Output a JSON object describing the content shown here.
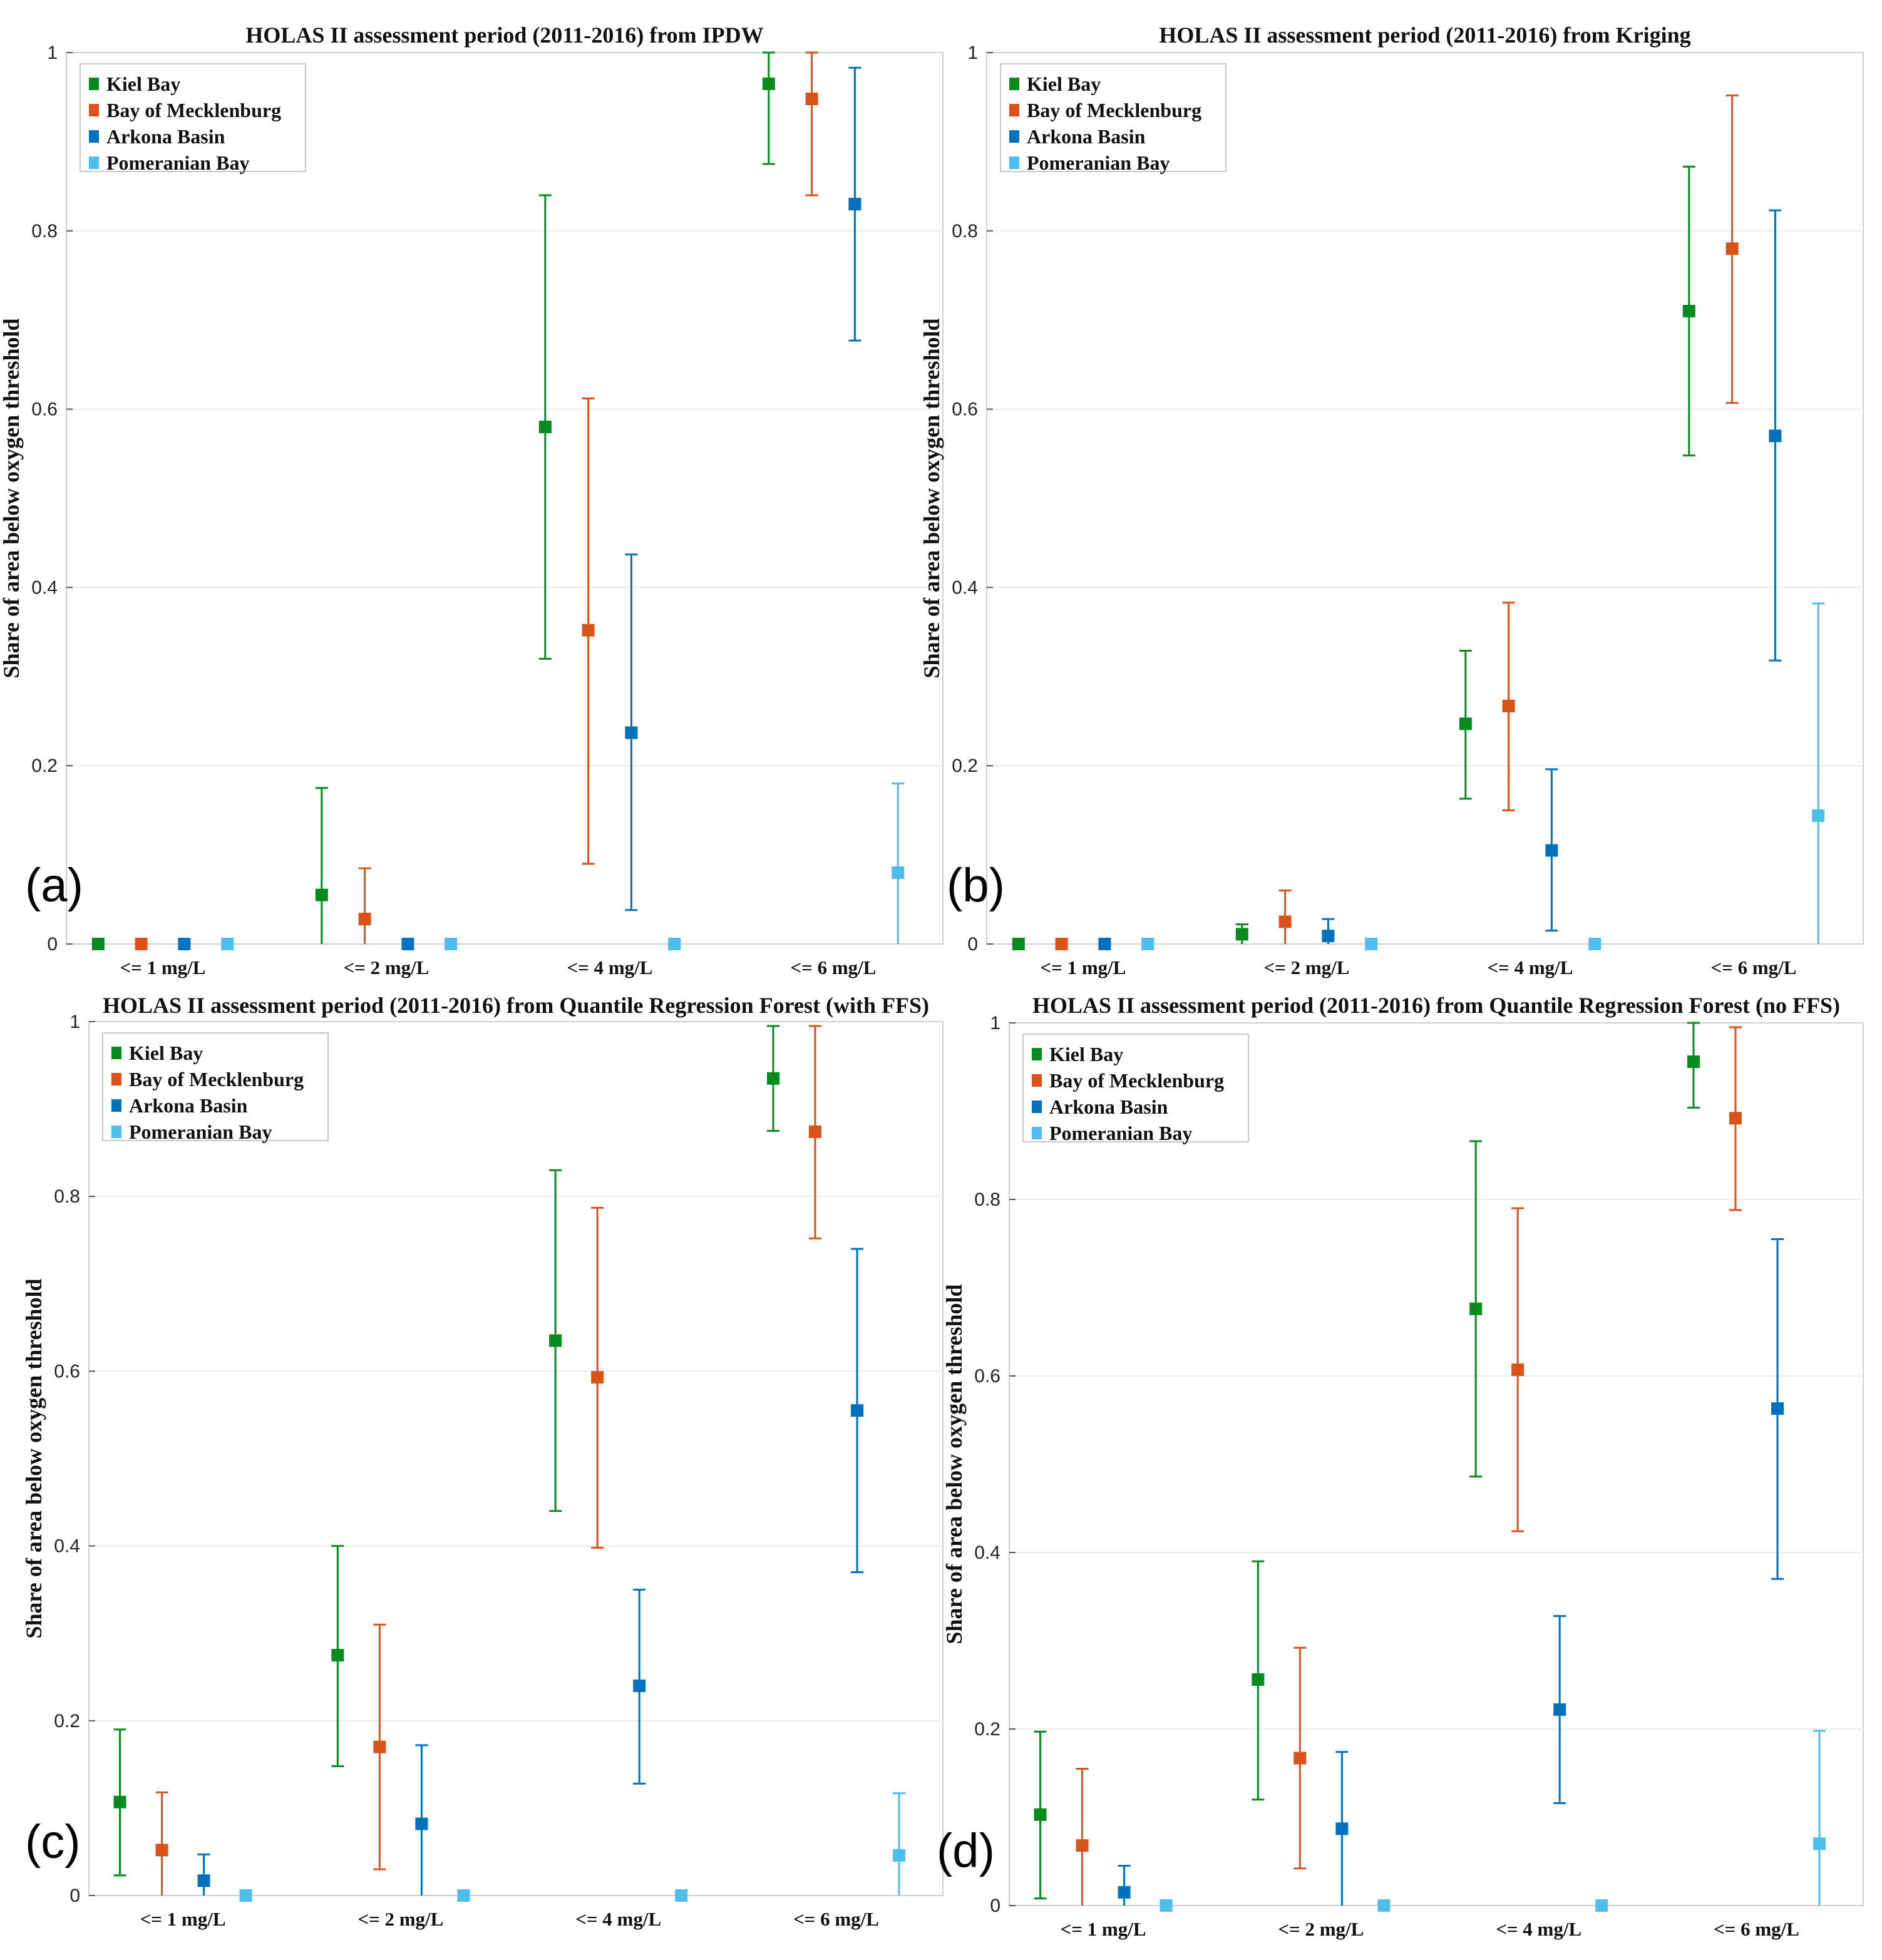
{
  "figure": {
    "series_names": [
      "Kiel Bay",
      "Bay of Mecklenburg",
      "Arkona Basin",
      "Pomeranian Bay"
    ],
    "series_colors": [
      "#078a1e",
      "#d95319",
      "#0072bd",
      "#4dbeee"
    ],
    "ylabel": "Share of area below oxygen threshold",
    "categories": [
      "<= 1 mg/L",
      "<= 2 mg/L",
      "<= 4 mg/L",
      "<= 6 mg/L"
    ],
    "yticks": [
      "0",
      "0.2",
      "0.4",
      "0.6",
      "0.8",
      "1"
    ]
  },
  "chart_data": [
    {
      "type": "errorbar",
      "panel_label": "(a)",
      "title": "HOLAS II assessment period (2011-2016) from IPDW",
      "xlabel": "",
      "ylabel": "Share of area below oxygen threshold",
      "ylim": [
        0,
        1
      ],
      "categories": [
        "<= 1 mg/L",
        "<= 2 mg/L",
        "<= 4 mg/L",
        "<= 6 mg/L"
      ],
      "legend_position": "top-left",
      "series": [
        {
          "name": "Kiel Bay",
          "values": [
            0,
            0.055,
            0.58,
            0.965
          ],
          "lower": [
            0,
            0,
            0.32,
            0.875
          ],
          "upper": [
            0,
            0.175,
            0.84,
            1.0
          ]
        },
        {
          "name": "Bay of Mecklenburg",
          "values": [
            0,
            0.028,
            0.352,
            0.948
          ],
          "lower": [
            0,
            0,
            0.09,
            0.84
          ],
          "upper": [
            0,
            0.085,
            0.612,
            1.0
          ]
        },
        {
          "name": "Arkona Basin",
          "values": [
            0,
            0,
            0.237,
            0.83
          ],
          "lower": [
            0,
            0,
            0.038,
            0.677
          ],
          "upper": [
            0,
            0,
            0.437,
            0.983
          ]
        },
        {
          "name": "Pomeranian Bay",
          "values": [
            0,
            0,
            0,
            0.08
          ],
          "lower": [
            0,
            0,
            0,
            0
          ],
          "upper": [
            0,
            0,
            0,
            0.18
          ]
        }
      ]
    },
    {
      "type": "errorbar",
      "panel_label": "(b)",
      "title": "HOLAS II assessment period (2011-2016) from Kriging",
      "xlabel": "",
      "ylabel": "Share of area below oxygen threshold",
      "ylim": [
        0,
        1
      ],
      "categories": [
        "<= 1 mg/L",
        "<= 2 mg/L",
        "<= 4 mg/L",
        "<= 6 mg/L"
      ],
      "legend_position": "top-left",
      "series": [
        {
          "name": "Kiel Bay",
          "values": [
            0,
            0.011,
            0.247,
            0.71
          ],
          "lower": [
            0,
            0,
            0.163,
            0.548
          ],
          "upper": [
            0,
            0.022,
            0.329,
            0.872
          ]
        },
        {
          "name": "Bay of Mecklenburg",
          "values": [
            0,
            0.025,
            0.267,
            0.78
          ],
          "lower": [
            0,
            0,
            0.15,
            0.607
          ],
          "upper": [
            0,
            0.06,
            0.383,
            0.952
          ]
        },
        {
          "name": "Arkona Basin",
          "values": [
            0,
            0.009,
            0.105,
            0.57
          ],
          "lower": [
            0,
            0,
            0.015,
            0.318
          ],
          "upper": [
            0,
            0.028,
            0.196,
            0.823
          ]
        },
        {
          "name": "Pomeranian Bay",
          "values": [
            0,
            0,
            0,
            0.144
          ],
          "lower": [
            0,
            0,
            0,
            0
          ],
          "upper": [
            0,
            0,
            0,
            0.382
          ]
        }
      ]
    },
    {
      "type": "errorbar",
      "panel_label": "(c)",
      "title": "HOLAS II assessment period (2011-2016) from Quantile Regression Forest (with FFS)",
      "xlabel": "",
      "ylabel": "Share of area below oxygen threshold",
      "ylim": [
        0,
        1
      ],
      "categories": [
        "<= 1 mg/L",
        "<= 2 mg/L",
        "<= 4 mg/L",
        "<= 6 mg/L"
      ],
      "legend_position": "top-left",
      "series": [
        {
          "name": "Kiel Bay",
          "values": [
            0.107,
            0.275,
            0.635,
            0.935
          ],
          "lower": [
            0.023,
            0.148,
            0.44,
            0.875
          ],
          "upper": [
            0.19,
            0.4,
            0.83,
            0.995
          ]
        },
        {
          "name": "Bay of Mecklenburg",
          "values": [
            0.052,
            0.17,
            0.593,
            0.874
          ],
          "lower": [
            0,
            0.03,
            0.398,
            0.752
          ],
          "upper": [
            0.118,
            0.31,
            0.787,
            0.995
          ]
        },
        {
          "name": "Arkona Basin",
          "values": [
            0.017,
            0.082,
            0.24,
            0.555
          ],
          "lower": [
            0,
            0,
            0.128,
            0.37
          ],
          "upper": [
            0.047,
            0.172,
            0.35,
            0.74
          ]
        },
        {
          "name": "Pomeranian Bay",
          "values": [
            0,
            0,
            0,
            0.046
          ],
          "lower": [
            0,
            0,
            0,
            0
          ],
          "upper": [
            0,
            0,
            0,
            0.117
          ]
        }
      ]
    },
    {
      "type": "errorbar",
      "panel_label": "(d)",
      "title": "HOLAS II assessment period (2011-2016) from Quantile Regression Forest (no FFS)",
      "xlabel": "",
      "ylabel": "Share of area below oxygen threshold",
      "ylim": [
        0,
        1
      ],
      "categories": [
        "<= 1 mg/L",
        "<= 2 mg/L",
        "<= 4 mg/L",
        "<= 6 mg/L"
      ],
      "legend_position": "top-left",
      "series": [
        {
          "name": "Kiel Bay",
          "values": [
            0.103,
            0.256,
            0.676,
            0.956
          ],
          "lower": [
            0.008,
            0.12,
            0.486,
            0.904
          ],
          "upper": [
            0.197,
            0.39,
            0.866,
            1.0
          ]
        },
        {
          "name": "Bay of Mecklenburg",
          "values": [
            0.068,
            0.167,
            0.607,
            0.892
          ],
          "lower": [
            0,
            0.042,
            0.424,
            0.788
          ],
          "upper": [
            0.155,
            0.292,
            0.79,
            0.995
          ]
        },
        {
          "name": "Arkona Basin",
          "values": [
            0.015,
            0.087,
            0.222,
            0.563
          ],
          "lower": [
            0,
            0,
            0.116,
            0.37
          ],
          "upper": [
            0.045,
            0.174,
            0.328,
            0.755
          ]
        },
        {
          "name": "Pomeranian Bay",
          "values": [
            0,
            0,
            0,
            0.07
          ],
          "lower": [
            0,
            0,
            0,
            0
          ],
          "upper": [
            0,
            0,
            0,
            0.198
          ]
        }
      ]
    }
  ]
}
